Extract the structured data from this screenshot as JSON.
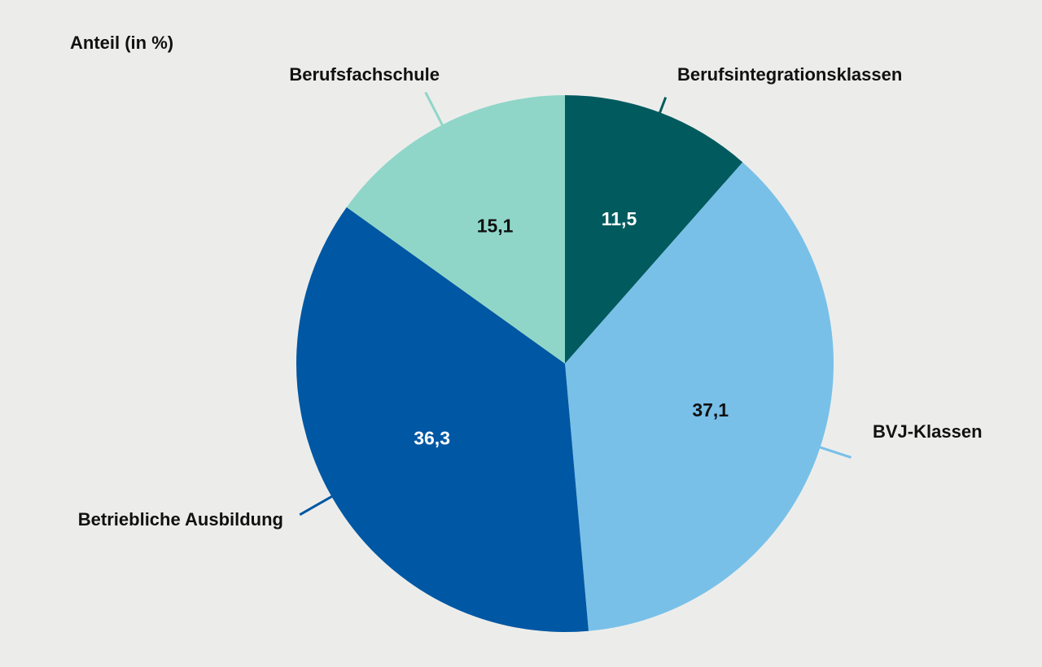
{
  "chart_data": {
    "type": "pie",
    "ylabel": "Anteil (in %)",
    "start_angle_deg": 0,
    "direction": "clockwise",
    "slices": [
      {
        "label": "Berufsintegrationsklassen",
        "value": 11.5,
        "value_label": "11,5",
        "color": "#005a5e",
        "value_text_color": "#ffffff"
      },
      {
        "label": "BVJ-Klassen",
        "value": 37.1,
        "value_label": "37,1",
        "color": "#78c0e8",
        "value_text_color": "#111111"
      },
      {
        "label": "Betriebliche Ausbildung",
        "value": 36.3,
        "value_label": "36,3",
        "color": "#0057a3",
        "value_text_color": "#ffffff"
      },
      {
        "label": "Berufsfachschule",
        "value": 15.1,
        "value_label": "15,1",
        "color": "#8fd6c9",
        "value_text_color": "#111111"
      }
    ]
  }
}
